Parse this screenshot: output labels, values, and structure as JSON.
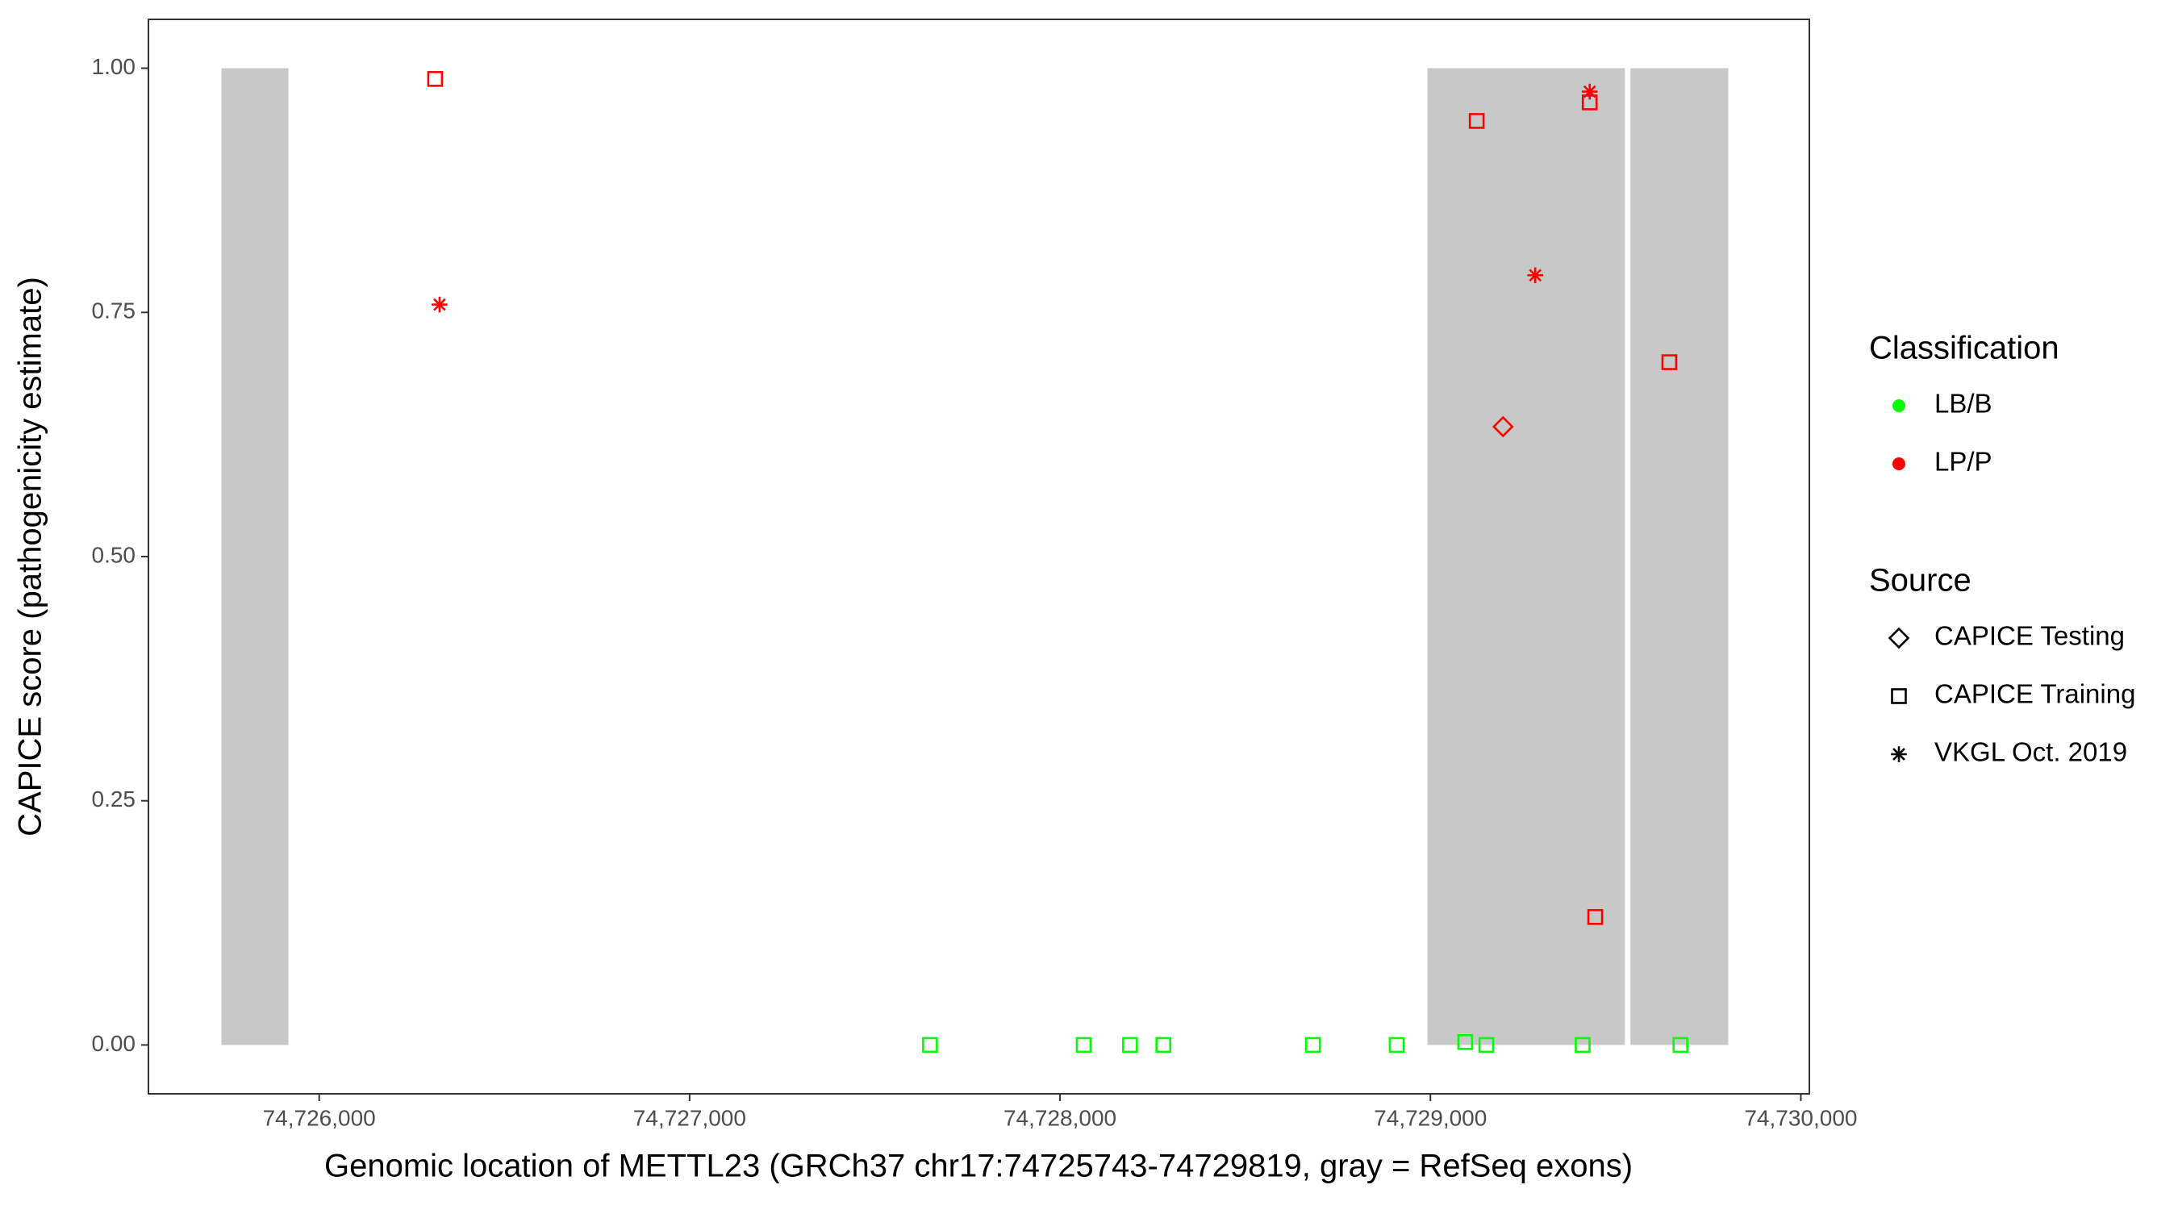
{
  "chart_data": {
    "type": "scatter",
    "x_label": "Genomic location of METTL23 (GRCh37 chr17:74725743-74729819, gray = RefSeq exons)",
    "y_label": "CAPICE score (pathogenicity estimate)",
    "xlim": [
      74725539,
      74730023
    ],
    "ylim": [
      -0.05,
      1.05
    ],
    "xticks": [
      {
        "value": 74726000,
        "label": "74,726,000"
      },
      {
        "value": 74727000,
        "label": "74,727,000"
      },
      {
        "value": 74728000,
        "label": "74,728,000"
      },
      {
        "value": 74729000,
        "label": "74,729,000"
      },
      {
        "value": 74730000,
        "label": "74,730,000"
      }
    ],
    "yticks": [
      {
        "value": 0,
        "label": "0.00"
      },
      {
        "value": 0.25,
        "label": "0.25"
      },
      {
        "value": 0.5,
        "label": "0.50"
      },
      {
        "value": 0.75,
        "label": "0.75"
      },
      {
        "value": 1,
        "label": "1.00"
      }
    ],
    "exons": [
      [
        74725736,
        74725917
      ],
      [
        74728992,
        74729525
      ],
      [
        74729540,
        74729804
      ]
    ],
    "exon_color": "#c8c8c8",
    "legend": {
      "color": {
        "title": "Classification",
        "items": [
          {
            "name": "LB/B",
            "color": "#00ff00"
          },
          {
            "name": "LP/P",
            "color": "#ff0000"
          }
        ]
      },
      "shape": {
        "title": "Source",
        "items": [
          {
            "name": "CAPICE Testing",
            "shape": "diamond"
          },
          {
            "name": "CAPICE Training",
            "shape": "square"
          },
          {
            "name": "VKGL Oct. 2019",
            "shape": "asterisk"
          }
        ]
      }
    },
    "series": [
      {
        "classification": "LP/P",
        "source": "CAPICE Training",
        "x": [
          74726313,
          74729125,
          74729430,
          74729645,
          74729445
        ],
        "y": [
          0.989,
          0.946,
          0.965,
          0.699,
          0.131
        ]
      },
      {
        "classification": "LP/P",
        "source": "VKGL Oct. 2019",
        "x": [
          74726325,
          74729430,
          74729283
        ],
        "y": [
          0.758,
          0.976,
          0.788
        ]
      },
      {
        "classification": "LP/P",
        "source": "CAPICE Testing",
        "x": [
          74729196
        ],
        "y": [
          0.633
        ]
      },
      {
        "classification": "LB/B",
        "source": "CAPICE Training",
        "x": [
          74727649,
          74728064,
          74728189,
          74728279,
          74728683,
          74728909,
          74729094,
          74729151,
          74729411,
          74729675
        ],
        "y": [
          0,
          0,
          0,
          0,
          0,
          0,
          0.003,
          0,
          0,
          0
        ]
      }
    ]
  }
}
